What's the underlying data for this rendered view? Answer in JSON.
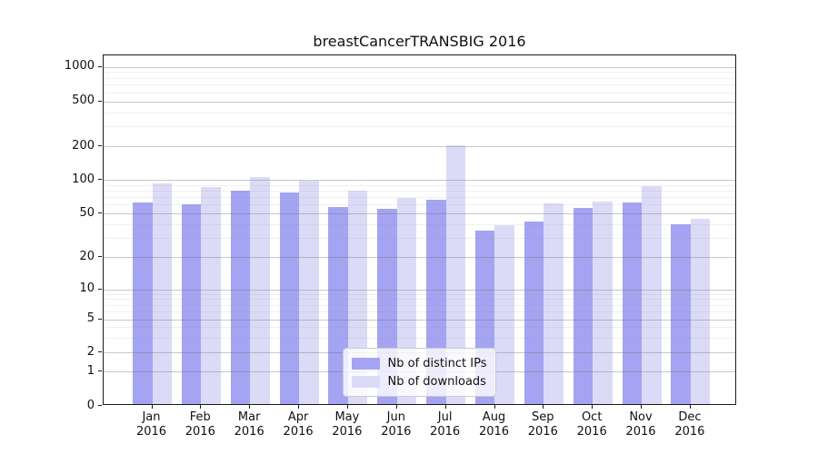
{
  "title": "breastCancerTRANSBIG 2016",
  "colors": {
    "ips_bar": "#a4a4f2",
    "downloads_bar": "#dbdbf8",
    "grid_major": "#c8c8c8",
    "grid_minor": "#ebebeb",
    "spine": "#1a1a1a",
    "text": "#111111",
    "legend_border": "#cccccc"
  },
  "legend": {
    "items": [
      {
        "label": "Nb of distinct IPs",
        "color_key": "ips_bar"
      },
      {
        "label": "Nb of downloads",
        "color_key": "downloads_bar"
      }
    ]
  },
  "x_axis": {
    "months": [
      "Jan",
      "Feb",
      "Mar",
      "Apr",
      "May",
      "Jun",
      "Jul",
      "Aug",
      "Sep",
      "Oct",
      "Nov",
      "Dec"
    ],
    "year": "2016"
  },
  "y_axis": {
    "ticks": [
      0,
      1,
      2,
      5,
      10,
      20,
      50,
      100,
      200,
      500,
      1000
    ],
    "minor_ticks": [
      3,
      4,
      6,
      7,
      8,
      9,
      30,
      40,
      60,
      70,
      80,
      90,
      300,
      400,
      600,
      700,
      800,
      900
    ]
  },
  "chart_data": {
    "type": "bar",
    "title": "breastCancerTRANSBIG 2016",
    "categories": [
      "Jan 2016",
      "Feb 2016",
      "Mar 2016",
      "Apr 2016",
      "May 2016",
      "Jun 2016",
      "Jul 2016",
      "Aug 2016",
      "Sep 2016",
      "Oct 2016",
      "Nov 2016",
      "Dec 2016"
    ],
    "series": [
      {
        "name": "Nb of distinct IPs",
        "values": [
          62,
          59,
          78,
          76,
          56,
          54,
          65,
          34,
          41,
          55,
          62,
          39
        ]
      },
      {
        "name": "Nb of downloads",
        "values": [
          92,
          84,
          103,
          96,
          78,
          68,
          200,
          38,
          60,
          63,
          86,
          44
        ]
      }
    ],
    "xlabel": "",
    "ylabel": "",
    "yscale": "symlog",
    "ylim": [
      0,
      1260
    ],
    "y_ticks": [
      0,
      1,
      2,
      5,
      10,
      20,
      50,
      100,
      200,
      500,
      1000
    ],
    "grid": true,
    "legend_position": "lower center"
  }
}
